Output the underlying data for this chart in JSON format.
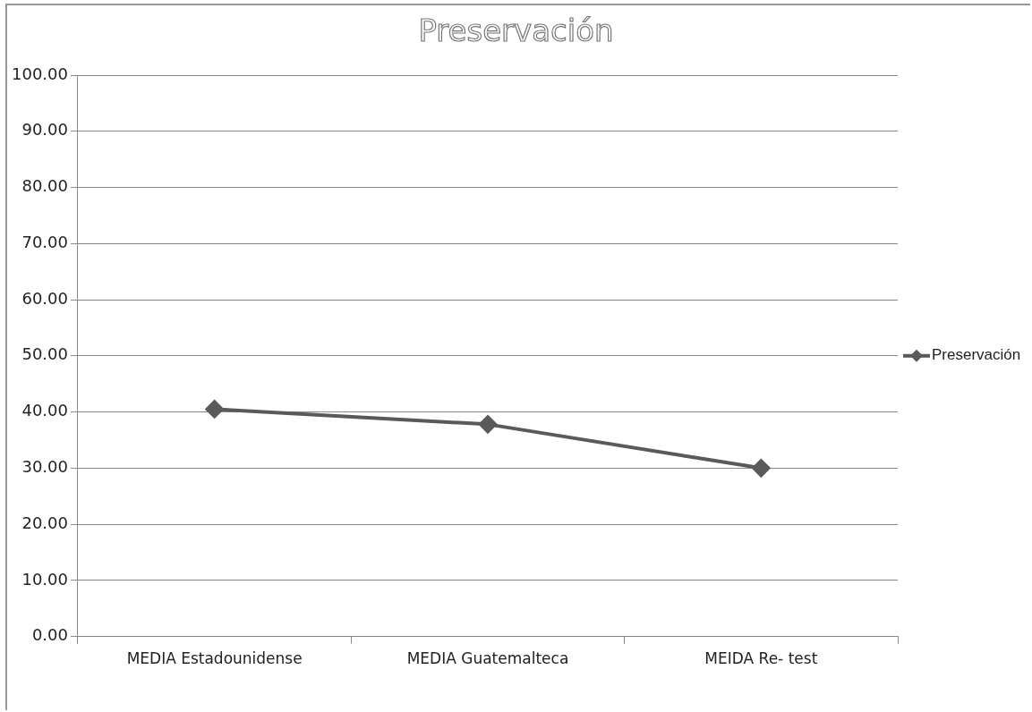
{
  "chart_data": {
    "type": "line",
    "title": "Preservación",
    "categories": [
      "MEDIA Estadounidense",
      "MEDIA Guatemalteca",
      "MEIDA Re- test"
    ],
    "series": [
      {
        "name": "Preservación",
        "color": "#5a5a5a",
        "values": [
          40.5,
          37.8,
          30.0
        ]
      }
    ],
    "ylim": [
      0,
      100
    ],
    "yticks": [
      {
        "value": 0,
        "label": "0.00"
      },
      {
        "value": 10,
        "label": "10.00"
      },
      {
        "value": 20,
        "label": "20.00"
      },
      {
        "value": 30,
        "label": "30.00"
      },
      {
        "value": 40,
        "label": "40.00"
      },
      {
        "value": 50,
        "label": "50.00"
      },
      {
        "value": 60,
        "label": "60.00"
      },
      {
        "value": 70,
        "label": "70.00"
      },
      {
        "value": 80,
        "label": "80.00"
      },
      {
        "value": 90,
        "label": "90.00"
      },
      {
        "value": 100,
        "label": "100.00"
      }
    ],
    "grid": "y",
    "legend": "right",
    "marker": "diamond",
    "line_style": "solid"
  }
}
